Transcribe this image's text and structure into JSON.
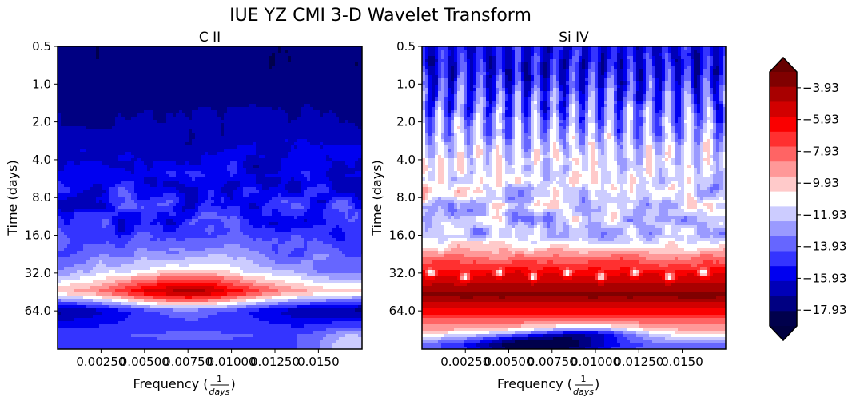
{
  "title": "IUE YZ CMI 3-D Wavelet Transform",
  "chart_data": [
    {
      "type": "heatmap",
      "title": "C II",
      "xlabel": "Frequency (1/days)",
      "ylabel": "Time (days)",
      "xticks": [
        "0.00250",
        "0.00500",
        "0.00750",
        "0.01000",
        "0.01250",
        "0.0150"
      ],
      "yticks": [
        "0.5",
        "1.0",
        "2.0",
        "4.0",
        "8.0",
        "16.0",
        "32.0",
        "64.0"
      ],
      "y_scale": "log2",
      "inverted_y": true,
      "features": [
        {
          "time_days": 0.7,
          "level": -17.9
        },
        {
          "time_days": 4.0,
          "level": -16.4
        },
        {
          "time_days": 8.0,
          "level": -15.5
        },
        {
          "time_days": 16.0,
          "level": -15.0
        },
        {
          "time_days": 32.0,
          "level": -13.8
        },
        {
          "time_days": 45.0,
          "level": -10.2
        },
        {
          "time_days": 64.0,
          "level": -16.8
        },
        {
          "time_days": 100.0,
          "level": -14.6
        }
      ]
    },
    {
      "type": "heatmap",
      "title": "Si IV",
      "xlabel": "Frequency (1/days)",
      "ylabel": "Time (days)",
      "xticks": [
        "0.00250",
        "0.00500",
        "0.00750",
        "0.01000",
        "0.01250",
        "0.0150"
      ],
      "yticks": [
        "0.5",
        "1.0",
        "2.0",
        "4.0",
        "8.0",
        "16.0",
        "32.0",
        "64.0"
      ],
      "y_scale": "log2",
      "inverted_y": true,
      "features": [
        {
          "time_days": 0.7,
          "level": -15.6
        },
        {
          "time_days": 4.0,
          "level": -11.4
        },
        {
          "time_days": 8.0,
          "level": -11.6
        },
        {
          "time_days": 16.0,
          "level": -12.2
        },
        {
          "time_days": 32.0,
          "level": -6.2
        },
        {
          "time_days": 48.0,
          "level": -4.4
        },
        {
          "time_days": 90.0,
          "level": -9.5
        },
        {
          "time_days": 120.0,
          "level": -13.6
        }
      ]
    }
  ],
  "colorbar": {
    "colormap": "seismic",
    "tick_labels": [
      "−3.93",
      "−5.93",
      "−7.93",
      "−9.93",
      "−11.93",
      "−13.93",
      "−15.93",
      "−17.93"
    ],
    "ticks": [
      -3.93,
      -5.93,
      -7.93,
      -9.93,
      -11.93,
      -13.93,
      -15.93,
      -17.93
    ],
    "range": [
      -18.93,
      -2.93
    ],
    "extend": "both",
    "colors": [
      "#00004c",
      "#000082",
      "#0000b8",
      "#0000f0",
      "#3434ff",
      "#6666ff",
      "#9a9aff",
      "#ccccff",
      "#ffffff",
      "#ffcaca",
      "#ff9898",
      "#ff6464",
      "#ff3030",
      "#fa0000",
      "#d20000",
      "#a80000",
      "#800000"
    ]
  }
}
